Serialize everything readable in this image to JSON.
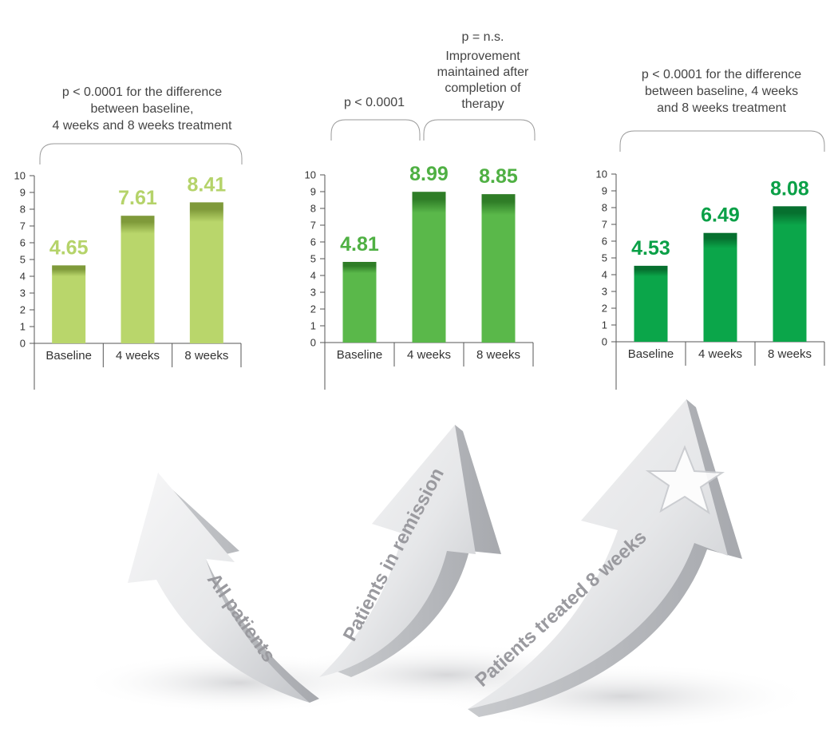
{
  "chart_data": [
    {
      "type": "bar",
      "categories": [
        "Baseline",
        "4 weeks",
        "8 weeks"
      ],
      "values": [
        4.65,
        7.61,
        8.41
      ],
      "value_labels": [
        "4.65",
        "7.61",
        "8.41"
      ],
      "ylim": [
        0,
        10
      ],
      "yticks": [
        "0",
        "1",
        "2",
        "3",
        "4",
        "5",
        "6",
        "7",
        "8",
        "9",
        "10"
      ],
      "bar_color": "#b9d66b",
      "bar_top_color": "#7f9a3a",
      "label_color": "#b5d36a",
      "annotations": [
        {
          "text": [
            "p < 0.0001 for the difference",
            "between baseline,",
            "4 weeks and 8 weeks treatment"
          ],
          "span": "all"
        }
      ]
    },
    {
      "type": "bar",
      "categories": [
        "Baseline",
        "4 weeks",
        "8 weeks"
      ],
      "values": [
        4.81,
        8.99,
        8.85
      ],
      "value_labels": [
        "4.81",
        "8.99",
        "8.85"
      ],
      "ylim": [
        0,
        10
      ],
      "yticks": [
        "0",
        "1",
        "2",
        "3",
        "4",
        "5",
        "6",
        "7",
        "8",
        "9",
        "10"
      ],
      "bar_color": "#5ab84a",
      "bar_top_color": "#2f7d27",
      "label_color": "#4fb043",
      "annotations": [
        {
          "text": [
            "p < 0.0001"
          ],
          "span": "baseline-to-4-weeks"
        },
        {
          "text": [
            "p = n.s."
          ],
          "span": "top"
        },
        {
          "text": [
            "Improvement",
            "maintained after",
            "completion of",
            "therapy"
          ],
          "span": "4-weeks-to-8-weeks"
        }
      ]
    },
    {
      "type": "bar",
      "categories": [
        "Baseline",
        "4 weeks",
        "8 weeks"
      ],
      "values": [
        4.53,
        6.49,
        8.08
      ],
      "value_labels": [
        "4.53",
        "6.49",
        "8.08"
      ],
      "ylim": [
        0,
        10
      ],
      "yticks": [
        "0",
        "1",
        "2",
        "3",
        "4",
        "5",
        "6",
        "7",
        "8",
        "9",
        "10"
      ],
      "bar_color": "#0ba64a",
      "bar_top_color": "#06702f",
      "label_color": "#0aa047",
      "annotations": [
        {
          "text": [
            "p < 0.0001 for the difference",
            "between baseline, 4 weeks",
            "and 8 weeks treatment"
          ],
          "span": "all"
        }
      ]
    }
  ],
  "arrows": [
    {
      "label": "All patients"
    },
    {
      "label": "Patients in remission"
    },
    {
      "label": "Patients treated 8 weeks"
    }
  ],
  "colors": {
    "axis": "#555555",
    "text": "#333333",
    "arrow_light": "#f4f4f5",
    "arrow_dark": "#b9bbc0",
    "arrow_text": "#9a9a9f"
  }
}
